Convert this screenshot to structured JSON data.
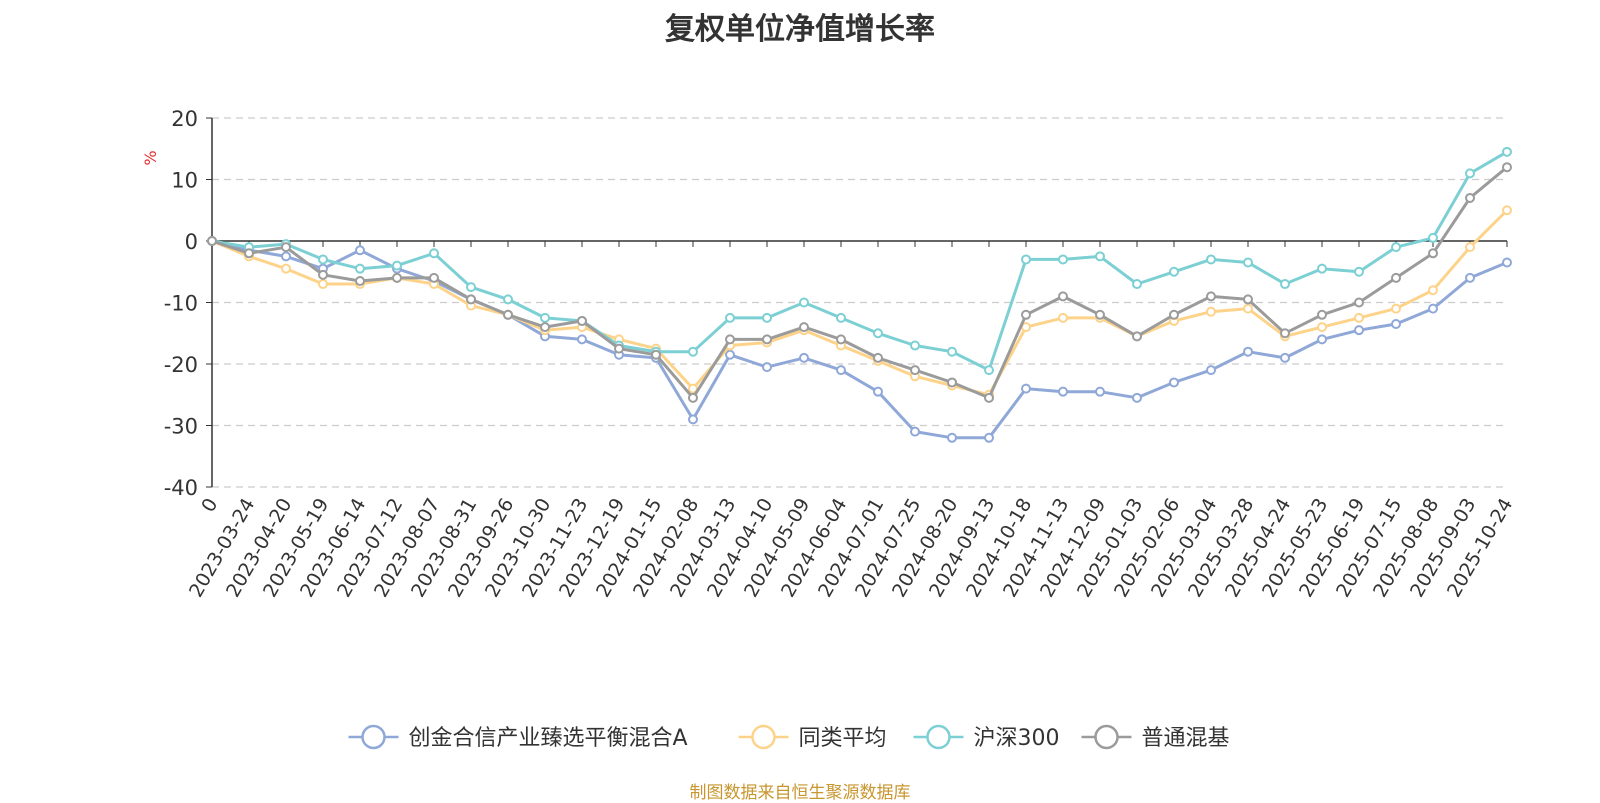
{
  "chart_data": {
    "type": "line",
    "title": "复权单位净值增长率",
    "ylabel": "%",
    "ylim": [
      -40,
      20
    ],
    "yticks": [
      20,
      10,
      0,
      -10,
      -20,
      -30,
      -40
    ],
    "grid": true,
    "legend_position": "bottom",
    "xtick_labels": [
      "0",
      "2023-03-24",
      "2023-04-20",
      "2023-05-19",
      "2023-06-14",
      "2023-07-12",
      "2023-08-07",
      "2023-08-31",
      "2023-09-26",
      "2023-10-30",
      "2023-11-23",
      "2023-12-19",
      "2024-01-15",
      "2024-02-08",
      "2024-03-13",
      "2024-04-10",
      "2024-05-09",
      "2024-06-04",
      "2024-07-01",
      "2024-07-25",
      "2024-08-20",
      "2024-09-13",
      "2024-10-18",
      "2024-11-13",
      "2024-12-09",
      "2025-01-03",
      "2025-02-06",
      "2025-03-04",
      "2025-03-28",
      "2025-04-24",
      "2025-05-23",
      "2025-06-19",
      "2025-07-15",
      "2025-08-08",
      "2025-09-03",
      "2025-10-24"
    ],
    "x": [
      "0",
      "2023-03-24",
      "2023-04-20",
      "2023-05-19",
      "2023-06-14",
      "2023-07-12",
      "2023-08-07",
      "2023-08-31",
      "2023-09-26",
      "2023-10-30",
      "2023-11-23",
      "2023-12-19",
      "2024-01-15",
      "2024-02-08",
      "2024-03-13",
      "2024-04-10",
      "2024-05-09",
      "2024-06-04",
      "2024-07-01",
      "2024-07-25",
      "2024-08-20",
      "2024-09-13",
      "2024-10-18",
      "2024-11-13",
      "2024-12-09",
      "2025-01-03",
      "2025-02-06",
      "2025-03-04",
      "2025-03-28",
      "2025-04-24",
      "2025-05-23",
      "2025-06-19",
      "2025-07-15",
      "2025-08-08",
      "2025-09-03",
      "2025-10-24"
    ],
    "series": [
      {
        "name": "创金合信产业臻选平衡混合A",
        "color": "#8fa8d8",
        "values": [
          0,
          -1.5,
          -2.5,
          -4.5,
          -1.5,
          -4.5,
          -6.5,
          -9.5,
          -12.0,
          -15.5,
          -16.0,
          -18.5,
          -19.0,
          -29.0,
          -18.5,
          -20.5,
          -19.0,
          -21.0,
          -24.5,
          -31.0,
          -32.0,
          -32.0,
          -24.0,
          -24.5,
          -24.5,
          -25.5,
          -23.0,
          -21.0,
          -18.0,
          -19.0,
          -16.0,
          -14.5,
          -13.5,
          -11.0,
          -6.0,
          -3.5
        ]
      },
      {
        "name": "同类平均",
        "color": "#fdd38a",
        "values": [
          0,
          -2.5,
          -4.5,
          -7.0,
          -7.0,
          -6.0,
          -7.0,
          -10.5,
          -12.0,
          -14.5,
          -14.0,
          -16.0,
          -17.5,
          -24.0,
          -17.0,
          -16.5,
          -14.5,
          -17.0,
          -19.5,
          -22.0,
          -23.5,
          -25.0,
          -14.0,
          -12.5,
          -12.5,
          -15.5,
          -13.0,
          -11.5,
          -11.0,
          -15.5,
          -14.0,
          -12.5,
          -11.0,
          -8.0,
          -1.0,
          5.0
        ]
      },
      {
        "name": "沪深300",
        "color": "#7cd0d4",
        "values": [
          0,
          -1.0,
          -0.5,
          -3.0,
          -4.5,
          -4.0,
          -2.0,
          -7.5,
          -9.5,
          -12.5,
          -13.0,
          -17.0,
          -18.0,
          -18.0,
          -12.5,
          -12.5,
          -10.0,
          -12.5,
          -15.0,
          -17.0,
          -18.0,
          -21.0,
          -3.0,
          -3.0,
          -2.5,
          -7.0,
          -5.0,
          -3.0,
          -3.5,
          -7.0,
          -4.5,
          -5.0,
          -1.0,
          0.5,
          11.0,
          14.5
        ]
      },
      {
        "name": "普通混基",
        "color": "#9b9b9b",
        "values": [
          0,
          -2.0,
          -1.0,
          -5.5,
          -6.5,
          -6.0,
          -6.0,
          -9.5,
          -12.0,
          -14.0,
          -13.0,
          -17.5,
          -18.5,
          -25.5,
          -16.0,
          -16.0,
          -14.0,
          -16.0,
          -19.0,
          -21.0,
          -23.0,
          -25.5,
          -12.0,
          -9.0,
          -12.0,
          -15.5,
          -12.0,
          -9.0,
          -9.5,
          -15.0,
          -12.0,
          -10.0,
          -6.0,
          -2.0,
          7.0,
          12.0
        ]
      }
    ]
  },
  "footer": {
    "source": "制图数据来自恒生聚源数据库"
  }
}
